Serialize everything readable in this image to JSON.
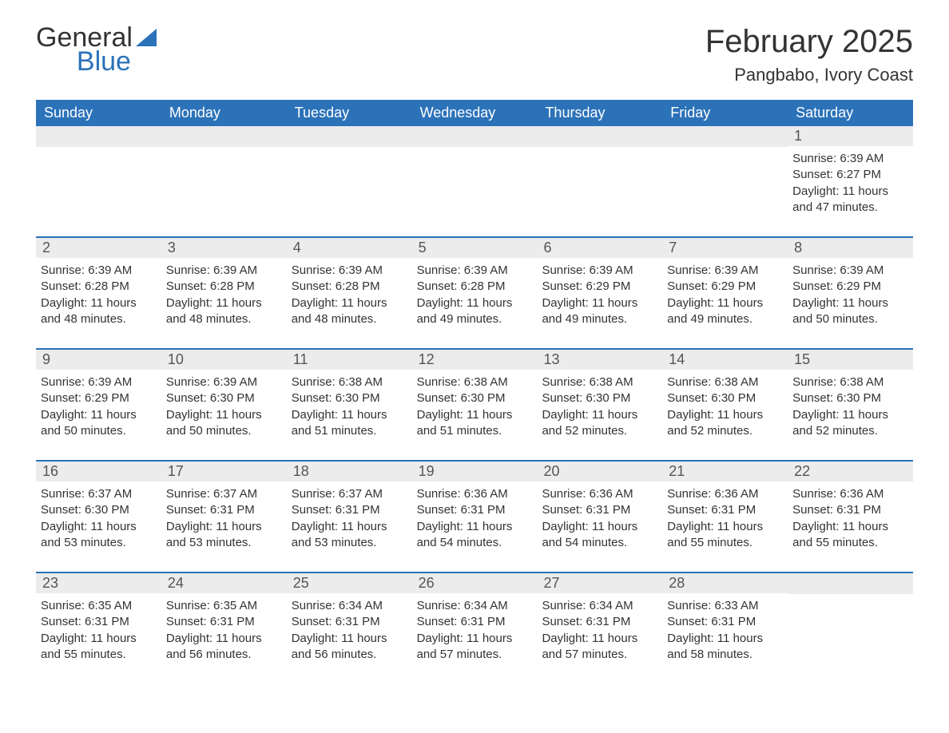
{
  "brand": {
    "text_top": "General",
    "text_bottom": "Blue",
    "accent_color": "#2b72b9"
  },
  "header": {
    "month_title": "February 2025",
    "location": "Pangbabo, Ivory Coast"
  },
  "colors": {
    "header_bg": "#2b72b9",
    "header_text": "#ffffff",
    "daynum_bg": "#ececec",
    "body_text": "#333333",
    "row_divider": "#2b72b9",
    "page_bg": "#ffffff"
  },
  "typography": {
    "month_title_fontsize": 40,
    "location_fontsize": 22,
    "day_header_fontsize": 18,
    "daynum_fontsize": 18,
    "body_fontsize": 15
  },
  "day_headers": [
    "Sunday",
    "Monday",
    "Tuesday",
    "Wednesday",
    "Thursday",
    "Friday",
    "Saturday"
  ],
  "weeks": [
    [
      null,
      null,
      null,
      null,
      null,
      null,
      {
        "n": "1",
        "sunrise": "Sunrise: 6:39 AM",
        "sunset": "Sunset: 6:27 PM",
        "daylight": "Daylight: 11 hours and 47 minutes."
      }
    ],
    [
      {
        "n": "2",
        "sunrise": "Sunrise: 6:39 AM",
        "sunset": "Sunset: 6:28 PM",
        "daylight": "Daylight: 11 hours and 48 minutes."
      },
      {
        "n": "3",
        "sunrise": "Sunrise: 6:39 AM",
        "sunset": "Sunset: 6:28 PM",
        "daylight": "Daylight: 11 hours and 48 minutes."
      },
      {
        "n": "4",
        "sunrise": "Sunrise: 6:39 AM",
        "sunset": "Sunset: 6:28 PM",
        "daylight": "Daylight: 11 hours and 48 minutes."
      },
      {
        "n": "5",
        "sunrise": "Sunrise: 6:39 AM",
        "sunset": "Sunset: 6:28 PM",
        "daylight": "Daylight: 11 hours and 49 minutes."
      },
      {
        "n": "6",
        "sunrise": "Sunrise: 6:39 AM",
        "sunset": "Sunset: 6:29 PM",
        "daylight": "Daylight: 11 hours and 49 minutes."
      },
      {
        "n": "7",
        "sunrise": "Sunrise: 6:39 AM",
        "sunset": "Sunset: 6:29 PM",
        "daylight": "Daylight: 11 hours and 49 minutes."
      },
      {
        "n": "8",
        "sunrise": "Sunrise: 6:39 AM",
        "sunset": "Sunset: 6:29 PM",
        "daylight": "Daylight: 11 hours and 50 minutes."
      }
    ],
    [
      {
        "n": "9",
        "sunrise": "Sunrise: 6:39 AM",
        "sunset": "Sunset: 6:29 PM",
        "daylight": "Daylight: 11 hours and 50 minutes."
      },
      {
        "n": "10",
        "sunrise": "Sunrise: 6:39 AM",
        "sunset": "Sunset: 6:30 PM",
        "daylight": "Daylight: 11 hours and 50 minutes."
      },
      {
        "n": "11",
        "sunrise": "Sunrise: 6:38 AM",
        "sunset": "Sunset: 6:30 PM",
        "daylight": "Daylight: 11 hours and 51 minutes."
      },
      {
        "n": "12",
        "sunrise": "Sunrise: 6:38 AM",
        "sunset": "Sunset: 6:30 PM",
        "daylight": "Daylight: 11 hours and 51 minutes."
      },
      {
        "n": "13",
        "sunrise": "Sunrise: 6:38 AM",
        "sunset": "Sunset: 6:30 PM",
        "daylight": "Daylight: 11 hours and 52 minutes."
      },
      {
        "n": "14",
        "sunrise": "Sunrise: 6:38 AM",
        "sunset": "Sunset: 6:30 PM",
        "daylight": "Daylight: 11 hours and 52 minutes."
      },
      {
        "n": "15",
        "sunrise": "Sunrise: 6:38 AM",
        "sunset": "Sunset: 6:30 PM",
        "daylight": "Daylight: 11 hours and 52 minutes."
      }
    ],
    [
      {
        "n": "16",
        "sunrise": "Sunrise: 6:37 AM",
        "sunset": "Sunset: 6:30 PM",
        "daylight": "Daylight: 11 hours and 53 minutes."
      },
      {
        "n": "17",
        "sunrise": "Sunrise: 6:37 AM",
        "sunset": "Sunset: 6:31 PM",
        "daylight": "Daylight: 11 hours and 53 minutes."
      },
      {
        "n": "18",
        "sunrise": "Sunrise: 6:37 AM",
        "sunset": "Sunset: 6:31 PM",
        "daylight": "Daylight: 11 hours and 53 minutes."
      },
      {
        "n": "19",
        "sunrise": "Sunrise: 6:36 AM",
        "sunset": "Sunset: 6:31 PM",
        "daylight": "Daylight: 11 hours and 54 minutes."
      },
      {
        "n": "20",
        "sunrise": "Sunrise: 6:36 AM",
        "sunset": "Sunset: 6:31 PM",
        "daylight": "Daylight: 11 hours and 54 minutes."
      },
      {
        "n": "21",
        "sunrise": "Sunrise: 6:36 AM",
        "sunset": "Sunset: 6:31 PM",
        "daylight": "Daylight: 11 hours and 55 minutes."
      },
      {
        "n": "22",
        "sunrise": "Sunrise: 6:36 AM",
        "sunset": "Sunset: 6:31 PM",
        "daylight": "Daylight: 11 hours and 55 minutes."
      }
    ],
    [
      {
        "n": "23",
        "sunrise": "Sunrise: 6:35 AM",
        "sunset": "Sunset: 6:31 PM",
        "daylight": "Daylight: 11 hours and 55 minutes."
      },
      {
        "n": "24",
        "sunrise": "Sunrise: 6:35 AM",
        "sunset": "Sunset: 6:31 PM",
        "daylight": "Daylight: 11 hours and 56 minutes."
      },
      {
        "n": "25",
        "sunrise": "Sunrise: 6:34 AM",
        "sunset": "Sunset: 6:31 PM",
        "daylight": "Daylight: 11 hours and 56 minutes."
      },
      {
        "n": "26",
        "sunrise": "Sunrise: 6:34 AM",
        "sunset": "Sunset: 6:31 PM",
        "daylight": "Daylight: 11 hours and 57 minutes."
      },
      {
        "n": "27",
        "sunrise": "Sunrise: 6:34 AM",
        "sunset": "Sunset: 6:31 PM",
        "daylight": "Daylight: 11 hours and 57 minutes."
      },
      {
        "n": "28",
        "sunrise": "Sunrise: 6:33 AM",
        "sunset": "Sunset: 6:31 PM",
        "daylight": "Daylight: 11 hours and 58 minutes."
      },
      null
    ]
  ]
}
